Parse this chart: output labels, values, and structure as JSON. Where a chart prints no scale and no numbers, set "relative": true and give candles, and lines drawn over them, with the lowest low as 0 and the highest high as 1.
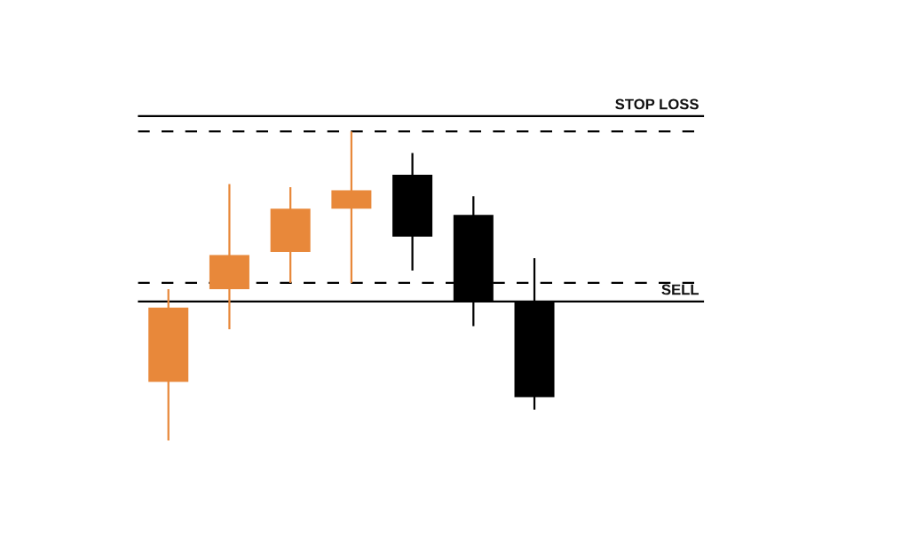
{
  "chart_data": {
    "type": "candlestick",
    "relative": true,
    "categories": [
      null,
      null,
      null,
      null,
      null,
      null,
      null
    ],
    "ohlc": [
      [
        0.19,
        0.49,
        0,
        0.43
      ],
      [
        0.49,
        0.83,
        0.36,
        0.6
      ],
      [
        0.61,
        0.82,
        0.51,
        0.75
      ],
      [
        0.75,
        1,
        0.51,
        0.81
      ],
      [
        0.86,
        0.93,
        0.55,
        0.66
      ],
      [
        0.73,
        0.79,
        0.37,
        0.45
      ],
      [
        0.45,
        0.59,
        0.1,
        0.14
      ]
    ],
    "colors": [
      "#e8883a",
      "#e8883a",
      "#e8883a",
      "#e8883a",
      "#000000",
      "#000000",
      "#000000"
    ],
    "ref_lines": [
      {
        "axis": "y",
        "value": 1.05,
        "label": "STOP LOSS",
        "color": "#000000",
        "line_style": "solid"
      },
      {
        "axis": "y",
        "value": 1,
        "color": "#000000",
        "line_style": "dashed"
      },
      {
        "axis": "y",
        "value": 0.51,
        "color": "#000000",
        "line_style": "dashed"
      },
      {
        "axis": "y",
        "value": 0.45,
        "label": "SELL",
        "color": "#000000",
        "line_style": "solid"
      }
    ]
  }
}
